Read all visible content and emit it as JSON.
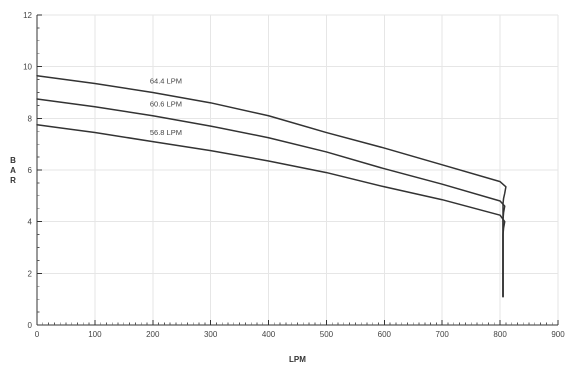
{
  "chart_data": {
    "type": "line",
    "xlabel": "LPM",
    "ylabel": "BAR",
    "xlim": [
      0,
      900
    ],
    "ylim": [
      0,
      12
    ],
    "x_ticks": [
      0,
      100,
      200,
      300,
      400,
      500,
      600,
      700,
      800,
      900
    ],
    "y_ticks": [
      0,
      2,
      4,
      6,
      8,
      10,
      12
    ],
    "grid": true,
    "series": [
      {
        "name": "64.4 LPM",
        "x": [
          0,
          100,
          200,
          300,
          400,
          500,
          600,
          700,
          800,
          810,
          808,
          806,
          805,
          805
        ],
        "y": [
          9.65,
          9.35,
          9.0,
          8.6,
          8.1,
          7.45,
          6.85,
          6.2,
          5.55,
          5.35,
          5.1,
          4.9,
          4.7,
          1.1
        ]
      },
      {
        "name": "60.6 LPM",
        "x": [
          0,
          100,
          200,
          300,
          400,
          500,
          600,
          700,
          800,
          808,
          806,
          805,
          805
        ],
        "y": [
          8.75,
          8.45,
          8.1,
          7.7,
          7.25,
          6.7,
          6.05,
          5.45,
          4.8,
          4.6,
          4.35,
          4.1,
          1.1
        ]
      },
      {
        "name": "56.8 LPM",
        "x": [
          0,
          100,
          200,
          300,
          400,
          500,
          600,
          700,
          800,
          808,
          806,
          805,
          805
        ],
        "y": [
          7.75,
          7.45,
          7.1,
          6.75,
          6.35,
          5.9,
          5.35,
          4.85,
          4.25,
          4.0,
          3.75,
          3.5,
          1.1
        ]
      }
    ],
    "annotations": [
      {
        "text": "64.4 LPM",
        "x": 195,
        "y": 9.35
      },
      {
        "text": "60.6 LPM",
        "x": 195,
        "y": 8.45
      },
      {
        "text": "56.8 LPM",
        "x": 195,
        "y": 7.35
      }
    ]
  }
}
